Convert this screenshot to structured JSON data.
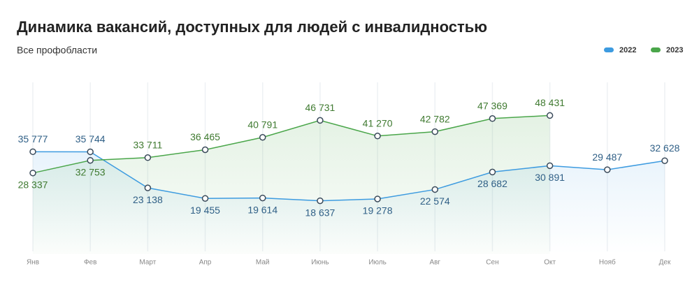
{
  "chart_data": {
    "type": "line",
    "title": "Динамика вакансий, доступных для людей с инвалидностью",
    "subtitle": "Все профобласти",
    "categories": [
      "Янв",
      "Фев",
      "Март",
      "Апр",
      "Май",
      "Июнь",
      "Июль",
      "Авг",
      "Сен",
      "Окт",
      "Нояб",
      "Дек"
    ],
    "ylim": [
      0,
      60000
    ],
    "grid": true,
    "legend": "top-right",
    "series": [
      {
        "name": "2022",
        "color": "#3d9be0",
        "label_color": "#2f5f86",
        "values": [
          35777,
          35744,
          23138,
          19455,
          19614,
          18637,
          19278,
          22574,
          28682,
          30891,
          29487,
          32628
        ],
        "value_labels": [
          "35 777",
          "35 744",
          "23 138",
          "19 455",
          "19 614",
          "18 637",
          "19 278",
          "22 574",
          "28 682",
          "30 891",
          "29 487",
          "32 628"
        ]
      },
      {
        "name": "2023",
        "color": "#4aa64a",
        "label_color": "#3f7a30",
        "values": [
          28337,
          32753,
          33711,
          36465,
          40791,
          46731,
          41270,
          42782,
          47369,
          48431,
          null,
          null
        ],
        "value_labels": [
          "28 337",
          "32 753",
          "33 711",
          "36 465",
          "40 791",
          "46 731",
          "41 270",
          "42 782",
          "47 369",
          "48 431",
          null,
          null
        ]
      }
    ]
  }
}
